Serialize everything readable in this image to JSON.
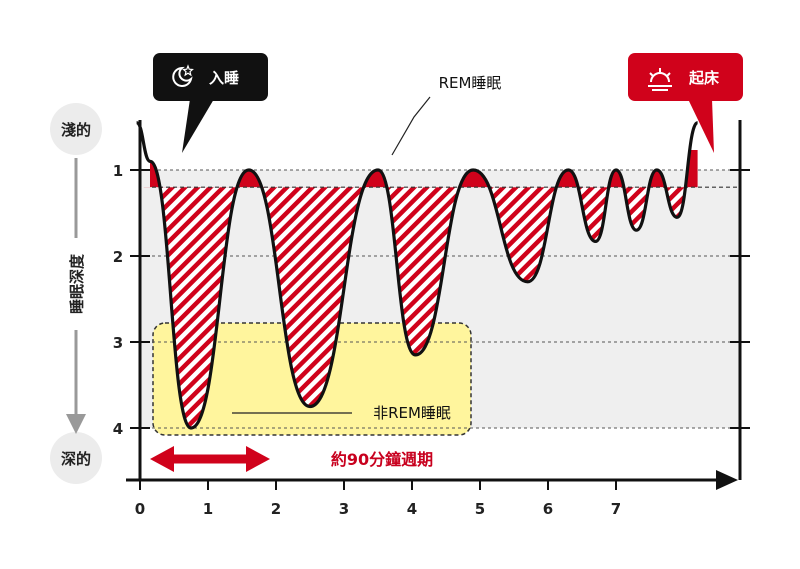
{
  "labels": {
    "shallow": "淺的",
    "deep": "深的",
    "sleep_depth": "睡眠深度",
    "fall_asleep": "入睡",
    "wake_up": "起床",
    "rem": "REM睡眠",
    "non_rem": "非REM睡眠",
    "cycle": "約90分鐘週期"
  },
  "icons": {
    "fall_asleep": "moon-star-icon",
    "wake_up": "sunrise-icon"
  },
  "colors": {
    "rem_fill": "#d0021b",
    "non_rem_highlight": "#fff59d",
    "sleep_label_bg": "#111111",
    "wake_label_bg": "#d0021b",
    "cycle_arrow": "#d0021b",
    "band": "#eeeeee"
  },
  "chart_data": {
    "type": "line",
    "x_ticks": [
      "0",
      "1",
      "2",
      "3",
      "4",
      "5",
      "6",
      "7"
    ],
    "y_ticks": [
      "1",
      "2",
      "3",
      "4"
    ],
    "ylim": [
      4.5,
      0.5
    ],
    "rem_threshold": 1.2,
    "series": [
      {
        "points": [
          [
            -0.05,
            0.45
          ],
          [
            0.15,
            0.9
          ],
          [
            0.75,
            4.0
          ],
          [
            1.6,
            1.0
          ],
          [
            2.5,
            3.75
          ],
          [
            3.5,
            1.0
          ],
          [
            4.05,
            3.15
          ],
          [
            4.9,
            1.0
          ],
          [
            5.7,
            2.3
          ],
          [
            6.3,
            1.0
          ],
          [
            6.7,
            1.83
          ],
          [
            7.0,
            1.0
          ],
          [
            7.3,
            1.7
          ],
          [
            7.6,
            1.0
          ],
          [
            7.9,
            1.55
          ],
          [
            8.2,
            0.45
          ]
        ]
      }
    ]
  }
}
